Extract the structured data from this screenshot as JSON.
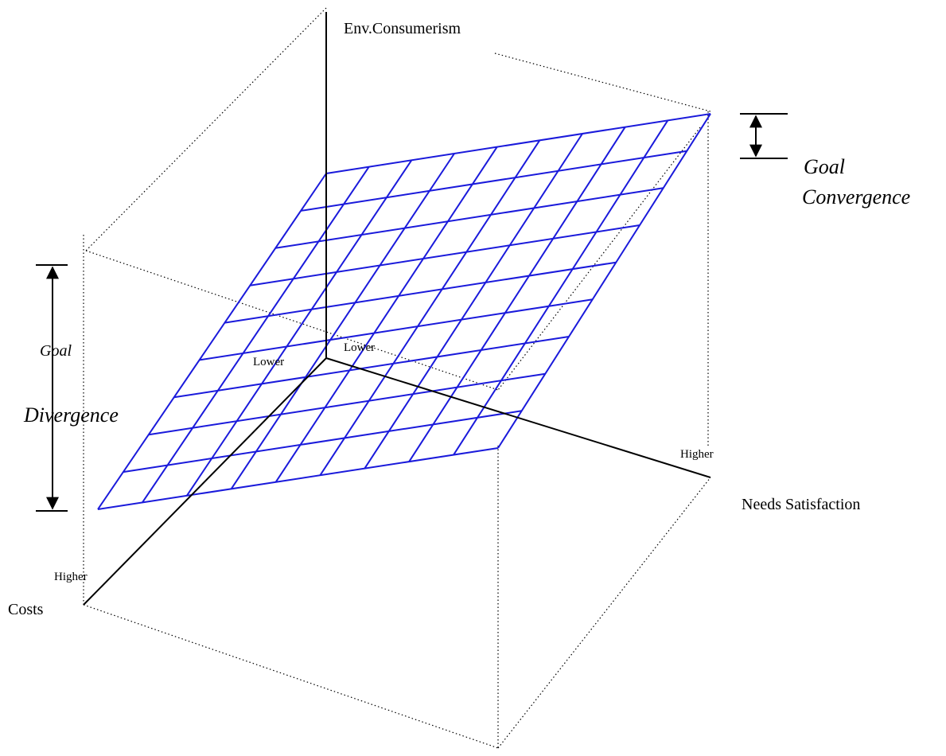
{
  "axes": {
    "vertical_label": "Env.Consumerism",
    "right_label": "Needs Satisfaction",
    "left_label": "Costs"
  },
  "ends": {
    "lower_left": "Lower",
    "lower_right": "Lower",
    "higher_left": "Higher",
    "higher_right": "Higher"
  },
  "annotations": {
    "convergence_line1": "Goal",
    "convergence_line2": "Convergence",
    "divergence_line1": "Goal",
    "divergence_line2": "Divergence"
  },
  "colors": {
    "grid": "#1a1adb",
    "axes": "#000000"
  }
}
